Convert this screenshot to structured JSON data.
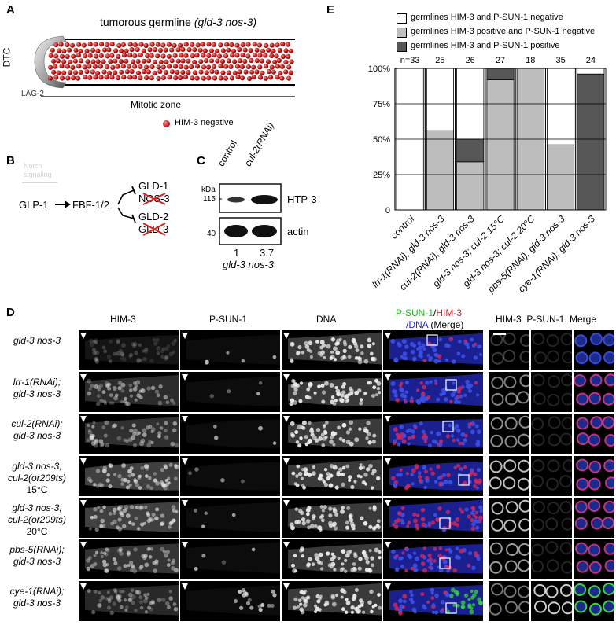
{
  "panelA": {
    "label": "A",
    "title_prefix": "tumorous germline ",
    "title_genotype": "(gld-3 nos-3)",
    "dtc": "DTC",
    "lag2": "LAG-2",
    "zone": "Mitotic zone",
    "legend": "HIM-3 negative",
    "colors": {
      "sphere": "#c81818",
      "sphere_hi": "#f06a6a"
    }
  },
  "panelB": {
    "label": "B",
    "notch": "Notch signaling",
    "glp1": "GLP-1",
    "fbf": "FBF-1/2",
    "gld1": "GLD-1",
    "nos3": "NOS-3",
    "gld2": "GLD-2",
    "gld3": "GLD-3",
    "cross_color": "#e02020"
  },
  "panelC": {
    "label": "C",
    "lane1": "control",
    "lane2": "cul-2(RNAi)",
    "kda": "kDa",
    "m115": "115",
    "m40": "40",
    "htp3": "HTP-3",
    "actin": "actin",
    "v1": "1",
    "v2": "3.7",
    "genotype": "gld-3 nos-3"
  },
  "panelE": {
    "label": "E",
    "legend": [
      {
        "text": "germlines HIM-3 and P-SUN-1 negative",
        "color": "#ffffff"
      },
      {
        "text": "germlines HIM-3 positive and P-SUN-1 negative",
        "color": "#bdbdbd"
      },
      {
        "text": "germlines HIM-3 and P-SUN-1 positive",
        "color": "#575757"
      }
    ]
  },
  "chart_data": {
    "type": "bar",
    "stacked": true,
    "categories": [
      "control",
      "lrr-1(RNAi); gld-3 nos-3",
      "cul-2(RNAi); gld-3 nos-3",
      "gld-3 nos-3; cul-2 15°C",
      "gld-3 nos-3; cul-2 20°C",
      "pbs-5(RNAi); gld-3 nos-3",
      "cye-1(RNAi); gld-3 nos-3"
    ],
    "n_labels": [
      "n=33",
      "25",
      "26",
      "27",
      "18",
      "35",
      "24"
    ],
    "series": [
      {
        "name": "germlines HIM-3 positive and P-SUN-1 negative",
        "values": [
          0,
          56,
          34,
          92,
          100,
          46,
          0
        ]
      },
      {
        "name": "germlines HIM-3 and P-SUN-1 positive",
        "values": [
          0,
          0,
          16,
          8,
          0,
          0,
          96
        ]
      },
      {
        "name": "germlines HIM-3 and P-SUN-1 negative",
        "values": [
          100,
          44,
          50,
          0,
          0,
          54,
          4
        ]
      }
    ],
    "yticks": [
      "0",
      "25%",
      "50%",
      "75%",
      "100%"
    ],
    "ylim": [
      0,
      100
    ],
    "grid": true
  },
  "panelD": {
    "label": "D",
    "col_him3": "HIM-3",
    "col_psun1": "P-SUN-1",
    "col_dna": "DNA",
    "merge_green": "P-SUN-1",
    "merge_slash": "/",
    "merge_red": "HIM-3",
    "merge_blue": "/DNA",
    "merge_rest": " (Merge)",
    "zoom_header": "HIM-3  P-SUN-1  Merge",
    "rows": [
      {
        "l1": "gld-3 nos-3",
        "l2": "",
        "l3": ""
      },
      {
        "l1": "lrr-1(RNAi);",
        "l2": "gld-3 nos-3",
        "l3": ""
      },
      {
        "l1": "cul-2(RNAi);",
        "l2": "gld-3 nos-3",
        "l3": ""
      },
      {
        "l1": "gld-3 nos-3;",
        "l2": "cul-2(or209ts)",
        "l3": "15°C"
      },
      {
        "l1": "gld-3 nos-3;",
        "l2": "cul-2(or209ts)",
        "l3": "20°C"
      },
      {
        "l1": "pbs-5(RNAi);",
        "l2": "gld-3 nos-3",
        "l3": ""
      },
      {
        "l1": "cye-1(RNAi);",
        "l2": "gld-3 nos-3",
        "l3": ""
      }
    ]
  }
}
